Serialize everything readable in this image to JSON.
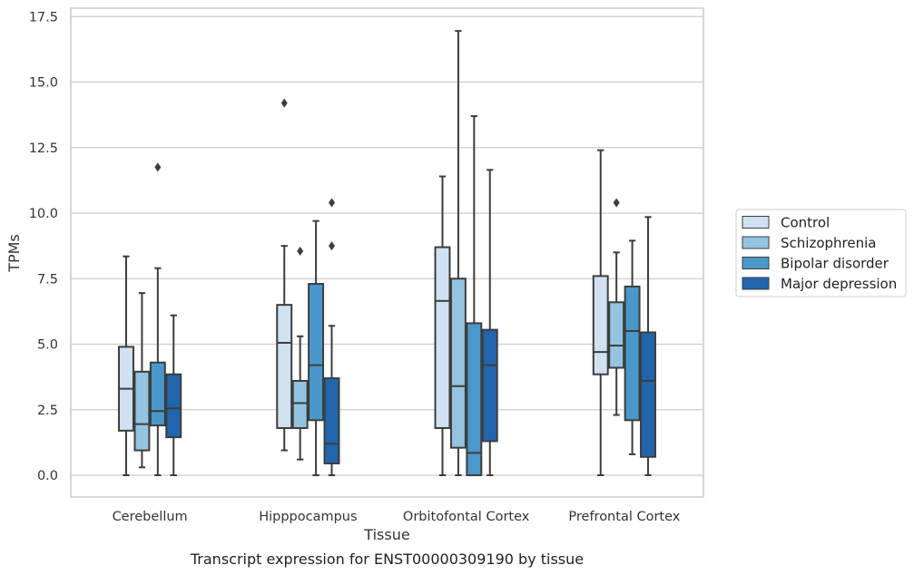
{
  "caption": "Transcript expression for ENST00000309190 by tissue",
  "chart_data": {
    "type": "boxplot",
    "xlabel": "Tissue",
    "ylabel": "TPMs",
    "ylim": [
      -0.8,
      17.8
    ],
    "yticks": [
      "0.0",
      "2.5",
      "5.0",
      "7.5",
      "10.0",
      "12.5",
      "15.0",
      "17.5"
    ],
    "grid": "horizontal",
    "legend_position": "right",
    "categories": [
      "Cerebellum",
      "Hipppocampus",
      "Orbitofontal Cortex",
      "Prefrontal Cortex"
    ],
    "series": [
      {
        "name": "Control",
        "color": "#d0e1f2",
        "boxes": [
          {
            "min": 0.0,
            "q1": 1.7,
            "median": 3.3,
            "q3": 4.9,
            "max": 8.35,
            "outliers": []
          },
          {
            "min": 0.95,
            "q1": 1.8,
            "median": 5.05,
            "q3": 6.5,
            "max": 8.75,
            "outliers": [
              14.2
            ]
          },
          {
            "min": 0.0,
            "q1": 1.8,
            "median": 6.65,
            "q3": 8.7,
            "max": 11.4,
            "outliers": []
          },
          {
            "min": 0.0,
            "q1": 3.85,
            "median": 4.7,
            "q3": 7.6,
            "max": 12.4,
            "outliers": []
          }
        ]
      },
      {
        "name": "Schizophrenia",
        "color": "#94c4df",
        "boxes": [
          {
            "min": 0.3,
            "q1": 0.95,
            "median": 1.95,
            "q3": 3.95,
            "max": 6.95,
            "outliers": []
          },
          {
            "min": 0.6,
            "q1": 1.8,
            "median": 2.75,
            "q3": 3.6,
            "max": 5.3,
            "outliers": [
              8.55
            ]
          },
          {
            "min": 0.0,
            "q1": 1.05,
            "median": 3.4,
            "q3": 7.5,
            "max": 16.95,
            "outliers": []
          },
          {
            "min": 2.3,
            "q1": 4.1,
            "median": 4.95,
            "q3": 6.6,
            "max": 8.5,
            "outliers": [
              10.4
            ]
          }
        ]
      },
      {
        "name": "Bipolar disorder",
        "color": "#4a98c9",
        "boxes": [
          {
            "min": 0.0,
            "q1": 1.9,
            "median": 2.45,
            "q3": 4.3,
            "max": 7.9,
            "outliers": [
              11.75
            ]
          },
          {
            "min": 0.0,
            "q1": 2.1,
            "median": 4.2,
            "q3": 7.3,
            "max": 9.7,
            "outliers": []
          },
          {
            "min": 0.0,
            "q1": 0.0,
            "median": 0.85,
            "q3": 5.8,
            "max": 13.7,
            "outliers": []
          },
          {
            "min": 0.8,
            "q1": 2.1,
            "median": 5.5,
            "q3": 7.2,
            "max": 8.95,
            "outliers": []
          }
        ]
      },
      {
        "name": "Major depression",
        "color": "#2166ac",
        "boxes": [
          {
            "min": 0.0,
            "q1": 1.45,
            "median": 2.55,
            "q3": 3.85,
            "max": 6.1,
            "outliers": []
          },
          {
            "min": 0.0,
            "q1": 0.45,
            "median": 1.2,
            "q3": 3.7,
            "max": 5.7,
            "outliers": [
              8.75,
              10.4
            ]
          },
          {
            "min": 0.0,
            "q1": 1.3,
            "median": 4.2,
            "q3": 5.55,
            "max": 11.65,
            "outliers": []
          },
          {
            "min": 0.0,
            "q1": 0.7,
            "median": 3.6,
            "q3": 5.45,
            "max": 9.85,
            "outliers": []
          }
        ]
      }
    ]
  }
}
